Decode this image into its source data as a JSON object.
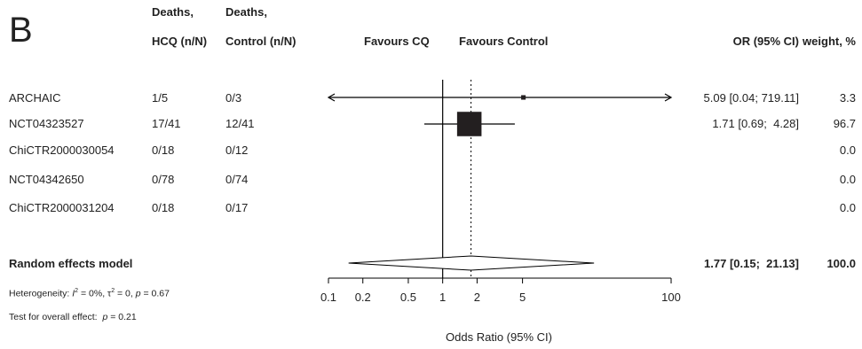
{
  "panel_label": "B",
  "headers": {
    "hcq": [
      "Deaths,",
      "HCQ (n/N)"
    ],
    "control": [
      "Deaths,",
      "Control (n/N)"
    ],
    "favours_left": "Favours CQ",
    "favours_right": "Favours Control",
    "or": "OR (95% CI)",
    "weight": "weight, %"
  },
  "studies": [
    {
      "name": "ARCHAIC",
      "hcq": "1/5",
      "control": "0/3",
      "or_text": "5.09 [0.04; 719.11]",
      "weight": "3.3",
      "or": 5.09,
      "lo": 0.04,
      "hi": 719.11,
      "w": 3.3
    },
    {
      "name": "NCT04323527",
      "hcq": "17/41",
      "control": "12/41",
      "or_text": "1.71 [0.69;  4.28]",
      "weight": "96.7",
      "or": 1.71,
      "lo": 0.69,
      "hi": 4.28,
      "w": 96.7
    },
    {
      "name": "ChiCTR2000030054",
      "hcq": "0/18",
      "control": "0/12",
      "or_text": "",
      "weight": "0.0",
      "or": null,
      "lo": null,
      "hi": null,
      "w": 0
    },
    {
      "name": "NCT04342650",
      "hcq": "0/78",
      "control": "0/74",
      "or_text": "",
      "weight": "0.0",
      "or": null,
      "lo": null,
      "hi": null,
      "w": 0
    },
    {
      "name": "ChiCTR2000031204",
      "hcq": "0/18",
      "control": "0/17",
      "or_text": "",
      "weight": "0.0",
      "or": null,
      "lo": null,
      "hi": null,
      "w": 0
    }
  ],
  "pooled": {
    "label": "Random effects model",
    "or_text": "1.77 [0.15;  21.13]",
    "weight": "100.0",
    "or": 1.77,
    "lo": 0.15,
    "hi": 21.13
  },
  "heterogeneity": {
    "prefix": "Heterogeneity: ",
    "i2_sym": "I",
    "i2_sup": "2",
    "i2_val": " = 0%, ",
    "tau_sym": "τ",
    "tau_sup": "2",
    "tau_val": " = 0, ",
    "p_sym": "p",
    "p_val": " = 0.67"
  },
  "overall": {
    "prefix": "Test for overall effect:  ",
    "p_sym": "p",
    "p_val": " = 0.21"
  },
  "chart_data": {
    "type": "forest",
    "xscale": "log",
    "xlim": [
      0.1,
      100
    ],
    "xticks": [
      0.1,
      0.2,
      0.5,
      1,
      2,
      5,
      100
    ],
    "xtick_labels": [
      "0.1",
      "0.2",
      "0.5",
      "1",
      "2",
      "5",
      "100"
    ],
    "xlabel": "Odds Ratio (95% CI)",
    "null_value": 1,
    "pooled_value": 1.77
  }
}
